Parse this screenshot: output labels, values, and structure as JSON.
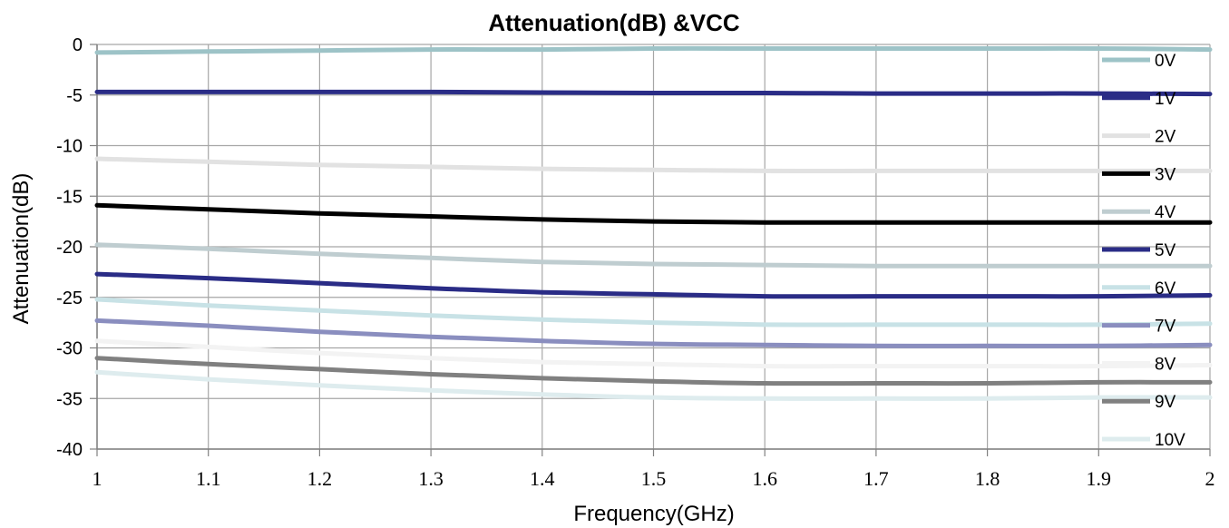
{
  "chart_data": {
    "type": "line",
    "title": "Attenuation(dB) &VCC",
    "xlabel": "Frequency(GHz)",
    "ylabel": "Attenuation(dB)",
    "xlim": [
      1,
      2
    ],
    "ylim": [
      -40,
      0
    ],
    "xticks": [
      "1",
      "1.1",
      "1.2",
      "1.3",
      "1.4",
      "1.5",
      "1.6",
      "1.7",
      "1.8",
      "1.9",
      "2"
    ],
    "yticks": [
      "0",
      "-5",
      "-10",
      "-15",
      "-20",
      "-25",
      "-30",
      "-35",
      "-40"
    ],
    "grid": true,
    "legend_position": "right",
    "x": [
      1,
      1.1,
      1.2,
      1.3,
      1.4,
      1.5,
      1.6,
      1.7,
      1.8,
      1.9,
      2
    ],
    "series": [
      {
        "name": "0V",
        "color": "#9dc3c7",
        "values": [
          -0.8,
          -0.7,
          -0.6,
          -0.5,
          -0.5,
          -0.4,
          -0.4,
          -0.4,
          -0.4,
          -0.4,
          -0.5
        ]
      },
      {
        "name": "1V",
        "color": "#2a2c86",
        "values": [
          -4.7,
          -4.7,
          -4.7,
          -4.7,
          -4.75,
          -4.8,
          -4.8,
          -4.85,
          -4.85,
          -4.85,
          -4.9
        ]
      },
      {
        "name": "2V",
        "color": "#e2e2e2",
        "values": [
          -11.3,
          -11.6,
          -11.9,
          -12.1,
          -12.3,
          -12.4,
          -12.5,
          -12.5,
          -12.5,
          -12.5,
          -12.5
        ]
      },
      {
        "name": "3V",
        "color": "#000000",
        "values": [
          -15.9,
          -16.3,
          -16.7,
          -17.0,
          -17.3,
          -17.5,
          -17.6,
          -17.6,
          -17.6,
          -17.6,
          -17.6
        ]
      },
      {
        "name": "4V",
        "color": "#bfcdd0",
        "values": [
          -19.8,
          -20.2,
          -20.7,
          -21.1,
          -21.5,
          -21.7,
          -21.8,
          -21.9,
          -21.9,
          -21.9,
          -21.9
        ]
      },
      {
        "name": "5V",
        "color": "#2a2c86",
        "values": [
          -22.7,
          -23.1,
          -23.6,
          -24.1,
          -24.5,
          -24.7,
          -24.9,
          -24.9,
          -24.9,
          -24.9,
          -24.8
        ]
      },
      {
        "name": "6V",
        "color": "#c8e2e6",
        "values": [
          -25.2,
          -25.8,
          -26.3,
          -26.8,
          -27.2,
          -27.5,
          -27.7,
          -27.7,
          -27.7,
          -27.7,
          -27.6
        ]
      },
      {
        "name": "7V",
        "color": "#8a8ebf",
        "values": [
          -27.3,
          -27.8,
          -28.4,
          -28.9,
          -29.3,
          -29.6,
          -29.7,
          -29.8,
          -29.8,
          -29.8,
          -29.7
        ]
      },
      {
        "name": "8V",
        "color": "#f3f3f3",
        "values": [
          -29.3,
          -29.9,
          -30.5,
          -31.0,
          -31.4,
          -31.6,
          -31.8,
          -31.8,
          -31.8,
          -31.8,
          -31.7
        ]
      },
      {
        "name": "9V",
        "color": "#808080",
        "values": [
          -31.0,
          -31.6,
          -32.1,
          -32.6,
          -33.0,
          -33.3,
          -33.5,
          -33.5,
          -33.5,
          -33.4,
          -33.4
        ]
      },
      {
        "name": "10V",
        "color": "#deecee",
        "values": [
          -32.4,
          -33.1,
          -33.7,
          -34.2,
          -34.6,
          -34.9,
          -35.0,
          -35.0,
          -35.0,
          -34.9,
          -34.9
        ]
      }
    ]
  }
}
